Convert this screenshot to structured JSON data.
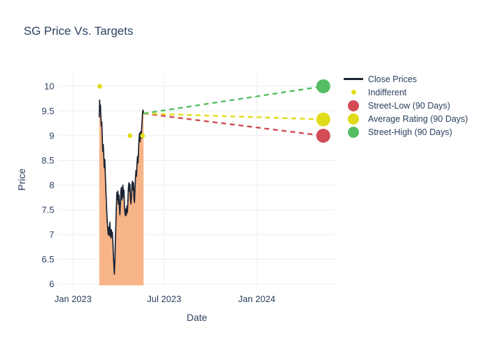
{
  "chart_data": {
    "type": "line",
    "title": "SG Price Vs. Targets",
    "xlabel": "Date",
    "ylabel": "Price",
    "ylim": [
      5.95,
      10.25
    ],
    "grid": true,
    "legend_position": "right",
    "y_ticks": [
      6,
      6.5,
      7,
      7.5,
      8,
      8.5,
      9,
      9.5,
      10
    ],
    "x_ticks": [
      {
        "label": "Jan 2023",
        "day": 0
      },
      {
        "label": "Jul 2023",
        "day": 181
      },
      {
        "label": "Jan 2024",
        "day": 365
      }
    ],
    "series": [
      {
        "name": "Close Prices",
        "type": "line+area",
        "color": "#1c2333",
        "fill_color": "#f7b487",
        "days": [
          52,
          52.8,
          53.6,
          54.4,
          55.2,
          56,
          57,
          58,
          59,
          60,
          61,
          62,
          63,
          64,
          65,
          66,
          67,
          68,
          69,
          70,
          71,
          72,
          73,
          74,
          75,
          76,
          77,
          78,
          79,
          80,
          81,
          82,
          83,
          84,
          85,
          86,
          87,
          88,
          89,
          90,
          91,
          92,
          93,
          94,
          95,
          96,
          97,
          98,
          99,
          100,
          101,
          102,
          103,
          104,
          105,
          106,
          107,
          108,
          109,
          110,
          111,
          112,
          113,
          114,
          115,
          116,
          117,
          118,
          119,
          120,
          121,
          122,
          123,
          124,
          125,
          126,
          127,
          128,
          129,
          130,
          131,
          132,
          133,
          134,
          135,
          136,
          137,
          138,
          139,
          140
        ],
        "values": [
          9.38,
          9.72,
          9.5,
          9.62,
          9.42,
          9.2,
          9.28,
          8.98,
          8.68,
          8.82,
          8.6,
          8.35,
          8.52,
          8.25,
          7.95,
          7.7,
          7.45,
          7.25,
          7.1,
          7,
          7.15,
          6.98,
          7.25,
          7.08,
          6.93,
          7.1,
          6.96,
          7.05,
          6.88,
          6.6,
          6.4,
          6.2,
          6.45,
          6.85,
          7.2,
          7.55,
          7.85,
          7.7,
          7.88,
          7.62,
          7.8,
          7.58,
          7.4,
          7.62,
          7.88,
          7.95,
          7.7,
          7.92,
          8,
          7.75,
          7.9,
          7.6,
          7.45,
          7.38,
          7.52,
          7.4,
          7.58,
          7.45,
          7.7,
          7.95,
          8.05,
          7.88,
          8.02,
          7.7,
          7.62,
          7.78,
          8,
          8.08,
          7.9,
          8.05,
          7.72,
          7.65,
          7.92,
          8.15,
          8.3,
          8.18,
          8.42,
          8.58,
          8.45,
          8.7,
          8.92,
          9.05,
          8.88,
          9.08,
          8.95,
          9.12,
          9.28,
          9.47,
          9.52,
          9.45
        ],
        "date_range": [
          "2023-02-21",
          "2023-05-21"
        ]
      },
      {
        "name": "Indifferent",
        "type": "scatter",
        "color": "#e1dc19",
        "points": [
          {
            "day": 53,
            "date": "2023-02-23",
            "price": 10
          },
          {
            "day": 113,
            "date": "2023-04-24",
            "price": 9
          },
          {
            "day": 138,
            "date": "2023-05-19",
            "price": 9
          }
        ]
      }
    ],
    "projection": {
      "start": {
        "day": 140,
        "date": "2023-05-21",
        "price": 9.45
      },
      "target_day": 497,
      "target_date": "2024-05-12",
      "targets": [
        {
          "name": "Street-Low (90 Days)",
          "price": 9.0,
          "color": "#d24b55"
        },
        {
          "name": "Average Rating (90 Days)",
          "price": 9.33,
          "color": "#e1dc19"
        },
        {
          "name": "Street-High (90 Days)",
          "price": 10.0,
          "color": "#55be64"
        }
      ]
    }
  },
  "legend": {
    "items": [
      {
        "label": "Close Prices",
        "swatch": "line",
        "color": "#1c2333"
      },
      {
        "label": "Indifferent",
        "swatch": "dot-small",
        "color": "#e1dc19"
      },
      {
        "label": "Street-Low (90 Days)",
        "swatch": "dot-large",
        "color": "#d24b55"
      },
      {
        "label": "Average Rating (90 Days)",
        "swatch": "dot-large",
        "color": "#e1dc19"
      },
      {
        "label": "Street-High (90 Days)",
        "swatch": "dot-large",
        "color": "#55be64"
      }
    ]
  },
  "colors": {
    "text": "#2a3f5f",
    "grid": "#e8eef5",
    "background": "#ffffff"
  }
}
